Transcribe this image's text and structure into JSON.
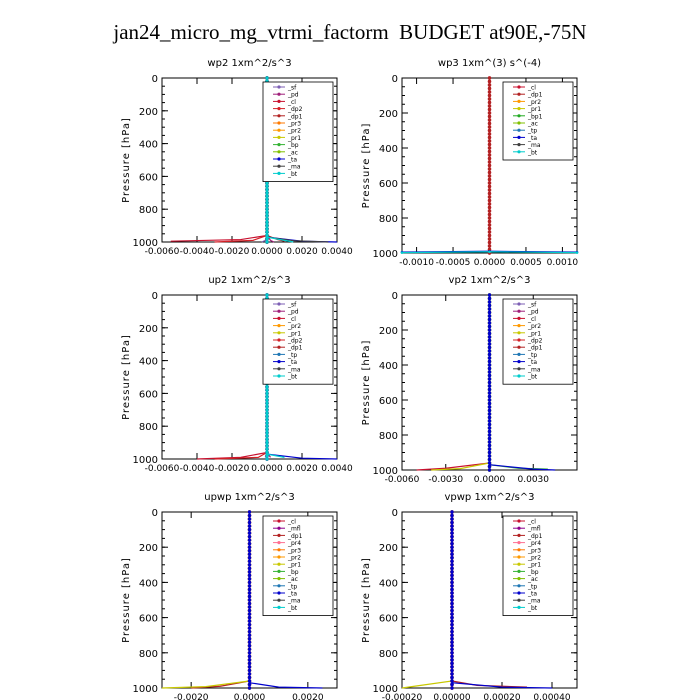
{
  "title": "jan24_micro_mg_vtrmi_factorm  BUDGET at90E,-75N",
  "ylabel": "Pressure [hPa]",
  "colors": {
    "_sf": "#7d5fb4",
    "_pd": "#a0207a",
    "_cl": "#c8102e",
    "_dp2": "#d42026",
    "_dp1": "#b22222",
    "_pr2": "#ff9900",
    "_pr1": "#c8c800",
    "_pr3": "#ff7a00",
    "_pr4": "#ff6f91",
    "_mfl": "#8b008b",
    "_bp": "#33b233",
    "_bp1": "#22aa22",
    "_ac": "#80c000",
    "_tp": "#1f77b4",
    "_ta": "#0000cc",
    "_ma": "#404040",
    "_bt": "#00cccc"
  },
  "chart_data": [
    {
      "type": "line",
      "title": "wp2   1xm^2/s^3",
      "ylabel": "Pressure [hPa]",
      "xlim": [
        -0.006,
        0.004
      ],
      "xticks": [
        "-0.0060",
        "-0.0040",
        "-0.0020",
        "0.0000",
        "0.0020",
        "0.0040"
      ],
      "xtick_values": [
        -0.006,
        -0.004,
        -0.002,
        0,
        0.002,
        0.004
      ],
      "ylim": [
        0,
        1000
      ],
      "yticks": [
        0,
        200,
        400,
        600,
        800,
        1000
      ],
      "legend": [
        "_sf",
        "_pd",
        "_cl",
        "_dp2",
        "_dp1",
        "_pr3",
        "_pr2",
        "_pr1",
        "_bp",
        "_ac",
        "_ta",
        "_ma",
        "_bt"
      ],
      "legend_position": "top-right",
      "series": [
        {
          "name": "_sf",
          "values": [
            [
              0,
              0
            ],
            [
              0,
              500
            ],
            [
              0,
              960
            ],
            [
              -0.0001,
              990
            ],
            [
              -0.0003,
              1000
            ]
          ]
        },
        {
          "name": "_pd",
          "values": [
            [
              0,
              0
            ],
            [
              0,
              500
            ],
            [
              0,
              960
            ],
            [
              0.0002,
              990
            ],
            [
              0.0004,
              1000
            ]
          ]
        },
        {
          "name": "_cl",
          "values": [
            [
              0,
              0
            ],
            [
              0,
              500
            ],
            [
              0,
              960
            ],
            [
              -0.0015,
              985
            ],
            [
              -0.0055,
              995
            ]
          ]
        },
        {
          "name": "_dp2",
          "values": [
            [
              0,
              0
            ],
            [
              0,
              960
            ],
            [
              -0.0008,
              990
            ],
            [
              -0.003,
              1000
            ]
          ]
        },
        {
          "name": "_dp1",
          "values": [
            [
              0,
              0
            ],
            [
              0,
              960
            ],
            [
              0.0006,
              985
            ],
            [
              0.001,
              995
            ]
          ]
        },
        {
          "name": "_ta",
          "values": [
            [
              0,
              0
            ],
            [
              0,
              970
            ],
            [
              0.002,
              995
            ],
            [
              0.004,
              1000
            ]
          ]
        },
        {
          "name": "_ma",
          "values": [
            [
              0,
              0
            ],
            [
              0,
              970
            ],
            [
              0.0015,
              992
            ],
            [
              0.0035,
              1000
            ]
          ]
        },
        {
          "name": "_bt",
          "values": [
            [
              0,
              0
            ],
            [
              0,
              970
            ],
            [
              0.001,
              990
            ],
            [
              0.0015,
              1000
            ]
          ]
        }
      ]
    },
    {
      "type": "line",
      "title": "wp3   1xm^(3) s^(-4)",
      "ylabel": "Pressure [hPa]",
      "xlim": [
        -0.0012,
        0.0012
      ],
      "xticks": [
        "-0.0010",
        "-0.0005",
        "0.0000",
        "0.0005",
        "0.0010"
      ],
      "xtick_values": [
        -0.001,
        -0.0005,
        0,
        0.0005,
        0.001
      ],
      "ylim": [
        0,
        1000
      ],
      "yticks": [
        0,
        200,
        400,
        600,
        800,
        1000
      ],
      "legend": [
        "_cl",
        "_dp1",
        "_pr2",
        "_pr1",
        "_bp1",
        "_ac",
        "_tp",
        "_ta",
        "_ma",
        "_bt"
      ],
      "legend_position": "top-right",
      "series": [
        {
          "name": "_cl",
          "values": [
            [
              0,
              0
            ],
            [
              0,
              500
            ],
            [
              0,
              1000
            ]
          ]
        },
        {
          "name": "_dp1",
          "values": [
            [
              0,
              0
            ],
            [
              0,
              500
            ],
            [
              0,
              1000
            ]
          ]
        },
        {
          "name": "_ta",
          "values": [
            [
              -0.0012,
              995
            ],
            [
              0,
              990
            ],
            [
              0.0012,
              995
            ]
          ]
        },
        {
          "name": "_bt",
          "values": [
            [
              -0.0012,
              998
            ],
            [
              0,
              993
            ],
            [
              0.0012,
              998
            ]
          ]
        }
      ]
    },
    {
      "type": "line",
      "title": "up2   1xm^2/s^3",
      "ylabel": "Pressure [hPa]",
      "xlim": [
        -0.006,
        0.004
      ],
      "xticks": [
        "-0.0060",
        "-0.0040",
        "-0.0020",
        "0.0000",
        "0.0020",
        "0.0040"
      ],
      "xtick_values": [
        -0.006,
        -0.004,
        -0.002,
        0,
        0.002,
        0.004
      ],
      "ylim": [
        0,
        1000
      ],
      "yticks": [
        0,
        200,
        400,
        600,
        800,
        1000
      ],
      "legend": [
        "_sf",
        "_pd",
        "_cl",
        "_pr2",
        "_pr1",
        "_dp2",
        "_dp1",
        "_tp",
        "_ta",
        "_ma",
        "_bt"
      ],
      "legend_position": "top-right",
      "series": [
        {
          "name": "_sf",
          "values": [
            [
              0,
              0
            ],
            [
              0,
              500
            ],
            [
              0,
              960
            ],
            [
              -0.0001,
              990
            ]
          ]
        },
        {
          "name": "_pd",
          "values": [
            [
              0,
              0
            ],
            [
              0,
              500
            ],
            [
              0,
              960
            ],
            [
              0.0002,
              990
            ]
          ]
        },
        {
          "name": "_cl",
          "values": [
            [
              0,
              0
            ],
            [
              0,
              960
            ],
            [
              -0.0015,
              990
            ],
            [
              -0.004,
              1000
            ]
          ]
        },
        {
          "name": "_dp2",
          "values": [
            [
              0,
              0
            ],
            [
              0,
              960
            ],
            [
              -0.0005,
              990
            ],
            [
              -0.003,
              1000
            ]
          ]
        },
        {
          "name": "_ta",
          "values": [
            [
              0,
              0
            ],
            [
              0,
              970
            ],
            [
              0.002,
              995
            ],
            [
              0.004,
              1000
            ]
          ]
        },
        {
          "name": "_bt",
          "values": [
            [
              0,
              0
            ],
            [
              0,
              970
            ],
            [
              0.001,
              990
            ]
          ]
        }
      ]
    },
    {
      "type": "line",
      "title": "vp2   1xm^2/s^3",
      "ylabel": "Pressure [hPa]",
      "xlim": [
        -0.006,
        0.006
      ],
      "xticks": [
        "-0.0060",
        "-0.0030",
        "0.0000",
        "0.0030"
      ],
      "xtick_values": [
        -0.006,
        -0.003,
        0,
        0.003
      ],
      "ylim": [
        0,
        1000
      ],
      "yticks": [
        0,
        200,
        400,
        600,
        800,
        1000
      ],
      "legend": [
        "_sf",
        "_pd",
        "_cl",
        "_pr2",
        "_pr1",
        "_dp2",
        "_dp1",
        "_tp",
        "_ta",
        "_ma",
        "_bt"
      ],
      "legend_position": "top-right",
      "series": [
        {
          "name": "_sf",
          "values": [
            [
              0,
              0
            ],
            [
              0,
              500
            ],
            [
              0,
              960
            ]
          ]
        },
        {
          "name": "_cl",
          "values": [
            [
              0,
              0
            ],
            [
              0,
              960
            ],
            [
              -0.003,
              990
            ],
            [
              -0.005,
              1000
            ]
          ]
        },
        {
          "name": "_pr1",
          "values": [
            [
              0,
              0
            ],
            [
              0,
              960
            ],
            [
              -0.002,
              992
            ],
            [
              -0.004,
              1000
            ]
          ]
        },
        {
          "name": "_bp",
          "values": [
            [
              0,
              0
            ],
            [
              0,
              970
            ],
            [
              0.002,
              990
            ],
            [
              0.004,
              995
            ]
          ]
        },
        {
          "name": "_ta",
          "values": [
            [
              0,
              0
            ],
            [
              0,
              970
            ],
            [
              0.003,
              995
            ],
            [
              0.0045,
              1000
            ]
          ]
        }
      ]
    },
    {
      "type": "line",
      "title": "upwp   1xm^2/s^3",
      "ylabel": "Pressure [hPa]",
      "xlim": [
        -0.003,
        0.003
      ],
      "xticks": [
        "-0.0020",
        "0.0000",
        "0.0020"
      ],
      "xtick_values": [
        -0.002,
        0,
        0.002
      ],
      "ylim": [
        0,
        1000
      ],
      "yticks": [
        0,
        200,
        400,
        600,
        800,
        1000
      ],
      "legend": [
        "_cl",
        "_mfl",
        "_dp1",
        "_pr4",
        "_pr3",
        "_pr2",
        "_pr1",
        "_bp",
        "_ac",
        "_tp",
        "_ta",
        "_ma",
        "_bt"
      ],
      "legend_position": "top-right",
      "series": [
        {
          "name": "_cl",
          "values": [
            [
              0,
              0
            ],
            [
              0,
              500
            ],
            [
              0,
              1000
            ]
          ]
        },
        {
          "name": "_mfl",
          "values": [
            [
              0,
              0
            ],
            [
              0,
              500
            ],
            [
              0,
              1000
            ]
          ]
        },
        {
          "name": "_dp1",
          "values": [
            [
              0,
              0
            ],
            [
              0,
              960
            ],
            [
              -0.001,
              990
            ],
            [
              -0.002,
              1000
            ]
          ]
        },
        {
          "name": "_pr1",
          "values": [
            [
              0,
              0
            ],
            [
              0,
              960
            ],
            [
              -0.0015,
              992
            ],
            [
              -0.003,
              1000
            ]
          ]
        },
        {
          "name": "_ta",
          "values": [
            [
              0,
              0
            ],
            [
              0,
              970
            ],
            [
              0.001,
              995
            ],
            [
              0.0025,
              1000
            ]
          ]
        }
      ]
    },
    {
      "type": "line",
      "title": "vpwp   1xm^2/s^3",
      "ylabel": "Pressure [hPa]",
      "xlim": [
        -0.0002,
        0.0005
      ],
      "xticks": [
        "-0.00020",
        "0.00000",
        "0.00020",
        "0.00040"
      ],
      "xtick_values": [
        -0.0002,
        0,
        0.0002,
        0.0004
      ],
      "ylim": [
        0,
        1000
      ],
      "yticks": [
        0,
        200,
        400,
        600,
        800,
        1000
      ],
      "legend": [
        "_cl",
        "_mfl",
        "_dp1",
        "_pr4",
        "_pr3",
        "_pr2",
        "_pr1",
        "_bp",
        "_ac",
        "_tp",
        "_ta",
        "_ma",
        "_bt"
      ],
      "legend_position": "top-right",
      "series": [
        {
          "name": "_cl",
          "values": [
            [
              0,
              0
            ],
            [
              0,
              500
            ],
            [
              0,
              1000
            ]
          ]
        },
        {
          "name": "_mfl",
          "values": [
            [
              0,
              0
            ],
            [
              0,
              500
            ],
            [
              0,
              1000
            ]
          ]
        },
        {
          "name": "_pr1",
          "values": [
            [
              0,
              0
            ],
            [
              0,
              960
            ],
            [
              -0.00015,
              990
            ],
            [
              -0.0002,
              1000
            ]
          ]
        },
        {
          "name": "_dp1",
          "values": [
            [
              0,
              0
            ],
            [
              0,
              960
            ],
            [
              0.0001,
              985
            ],
            [
              0.0003,
              995
            ]
          ]
        },
        {
          "name": "_ta",
          "values": [
            [
              0,
              0
            ],
            [
              0,
              970
            ],
            [
              0.0002,
              995
            ],
            [
              0.0004,
              1000
            ]
          ]
        }
      ]
    }
  ]
}
